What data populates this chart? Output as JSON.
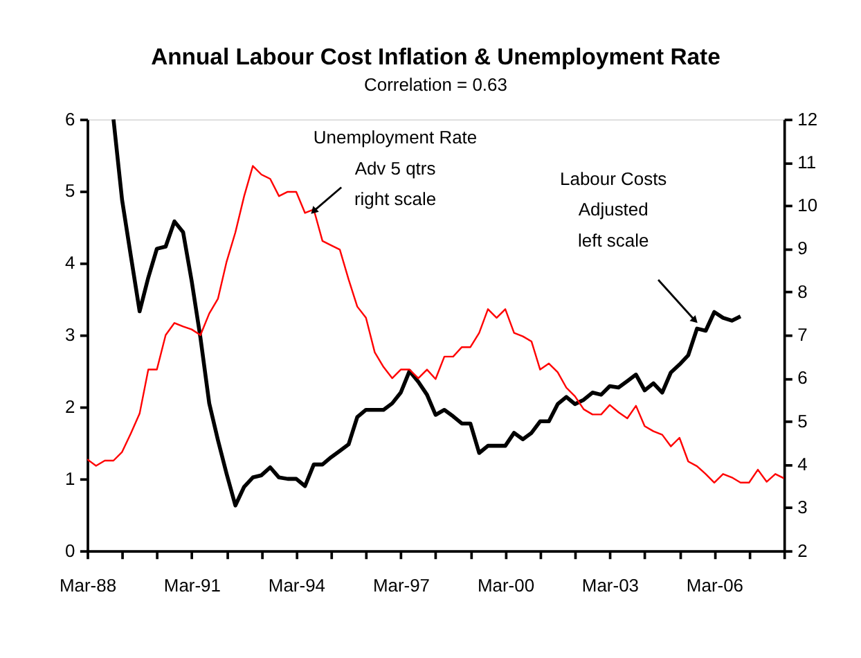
{
  "chart_data": {
    "type": "line",
    "title": "Annual Labour Cost Inflation & Unemployment Rate",
    "subtitle": "Correlation = 0.63",
    "annotations": [
      "Unemployment Rate\nAdv 5 qtrs\nright scale",
      "Labour Costs\nAdjusted\nleft scale"
    ],
    "xlim": [
      "1988-03",
      "2008-03"
    ],
    "xticks": [
      {
        "value": "1988-03",
        "label": "Mar-88"
      },
      {
        "value": "1989-03",
        "label": null
      },
      {
        "value": "1990-03",
        "label": null
      },
      {
        "value": "1991-03",
        "label": "Mar-91"
      },
      {
        "value": "1992-03",
        "label": null
      },
      {
        "value": "1993-03",
        "label": null
      },
      {
        "value": "1994-03",
        "label": "Mar-94"
      },
      {
        "value": "1995-03",
        "label": null
      },
      {
        "value": "1996-03",
        "label": null
      },
      {
        "value": "1997-03",
        "label": "Mar-97"
      },
      {
        "value": "1998-03",
        "label": null
      },
      {
        "value": "1999-03",
        "label": null
      },
      {
        "value": "2000-03",
        "label": "Mar-00"
      },
      {
        "value": "2001-03",
        "label": null
      },
      {
        "value": "2002-03",
        "label": null
      },
      {
        "value": "2003-03",
        "label": "Mar-03"
      },
      {
        "value": "2004-03",
        "label": null
      },
      {
        "value": "2005-03",
        "label": null
      },
      {
        "value": "2006-03",
        "label": "Mar-06"
      },
      {
        "value": "2007-03",
        "label": null
      },
      {
        "value": "2008-03",
        "label": null
      }
    ],
    "ylim": [
      0,
      6
    ],
    "yticks": [
      0,
      1,
      2,
      3,
      4,
      5,
      6
    ],
    "y2lim": [
      2,
      12
    ],
    "y2ticks": [
      2,
      3,
      4,
      5,
      6,
      7,
      8,
      9,
      10,
      11,
      12
    ],
    "grid": false,
    "legend": false,
    "marker": "none",
    "line_style": "solid",
    "series": [
      {
        "color": "#000000",
        "axis": "y",
        "x": [
          "1988-12",
          "1989-03",
          "1989-06",
          "1989-09",
          "1989-12",
          "1990-03",
          "1990-06",
          "1990-09",
          "1990-12",
          "1991-03",
          "1991-06",
          "1991-09",
          "1991-12",
          "1992-03",
          "1992-06",
          "1992-09",
          "1992-12",
          "1993-03",
          "1993-06",
          "1993-09",
          "1993-12",
          "1994-03",
          "1994-06",
          "1994-09",
          "1994-12",
          "1995-03",
          "1995-06",
          "1995-09",
          "1995-12",
          "1996-03",
          "1996-06",
          "1996-09",
          "1996-12",
          "1997-03",
          "1997-06",
          "1997-09",
          "1997-12",
          "1998-03",
          "1998-06",
          "1998-09",
          "1998-12",
          "1999-03",
          "1999-06",
          "1999-09",
          "1999-12",
          "2000-03",
          "2000-06",
          "2000-09",
          "2000-12",
          "2001-03",
          "2001-06",
          "2001-09",
          "2001-12",
          "2002-03",
          "2002-06",
          "2002-09",
          "2002-12",
          "2003-03",
          "2003-06",
          "2003-09",
          "2003-12",
          "2004-03",
          "2004-06",
          "2004-09",
          "2004-12",
          "2005-03",
          "2005-06",
          "2005-09",
          "2005-12",
          "2006-03",
          "2006-06",
          "2006-09",
          "2006-12"
        ],
        "values": [
          6.0,
          4.88,
          4.1,
          3.33,
          3.8,
          4.2,
          4.23,
          4.58,
          4.43,
          3.75,
          2.96,
          2.05,
          1.54,
          1.07,
          0.63,
          0.89,
          1.02,
          1.05,
          1.16,
          1.02,
          1.0,
          1.0,
          0.9,
          1.2,
          1.2,
          1.3,
          1.39,
          1.48,
          1.86,
          1.96,
          1.96,
          1.96,
          2.05,
          2.2,
          2.5,
          2.35,
          2.17,
          1.89,
          1.96,
          1.87,
          1.77,
          1.77,
          1.36,
          1.46,
          1.46,
          1.46,
          1.64,
          1.55,
          1.64,
          1.8,
          1.8,
          2.04,
          2.14,
          2.04,
          2.1,
          2.2,
          2.17,
          2.29,
          2.27,
          2.36,
          2.45,
          2.23,
          2.33,
          2.2,
          2.48,
          2.59,
          2.72,
          3.09,
          3.06,
          3.32,
          3.24,
          3.2,
          3.26
        ]
      },
      {
        "color": "#ff0000",
        "axis": "y2",
        "x": [
          "1988-03",
          "1988-06",
          "1988-09",
          "1988-12",
          "1989-03",
          "1989-06",
          "1989-09",
          "1989-12",
          "1990-03",
          "1990-06",
          "1990-09",
          "1990-12",
          "1991-03",
          "1991-06",
          "1991-09",
          "1991-12",
          "1992-03",
          "1992-06",
          "1992-09",
          "1992-12",
          "1993-03",
          "1993-06",
          "1993-09",
          "1993-12",
          "1994-03",
          "1994-06",
          "1994-09",
          "1994-12",
          "1995-03",
          "1995-06",
          "1995-09",
          "1995-12",
          "1996-03",
          "1996-06",
          "1996-09",
          "1996-12",
          "1997-03",
          "1997-06",
          "1997-09",
          "1997-12",
          "1998-03",
          "1998-06",
          "1998-09",
          "1998-12",
          "1999-03",
          "1999-06",
          "1999-09",
          "1999-12",
          "2000-03",
          "2000-06",
          "2000-09",
          "2000-12",
          "2001-03",
          "2001-06",
          "2001-09",
          "2001-12",
          "2002-03",
          "2002-06",
          "2002-09",
          "2002-12",
          "2003-03",
          "2003-06",
          "2003-09",
          "2003-12",
          "2004-03",
          "2004-06",
          "2004-09",
          "2004-12",
          "2005-03",
          "2005-06",
          "2005-09",
          "2005-12",
          "2006-03",
          "2006-06",
          "2006-09",
          "2006-12",
          "2007-03",
          "2007-06",
          "2007-09",
          "2007-12",
          "2008-03"
        ],
        "values": [
          4.12,
          3.97,
          4.09,
          4.09,
          4.29,
          4.72,
          5.18,
          6.2,
          6.2,
          7.0,
          7.28,
          7.2,
          7.13,
          7.0,
          7.5,
          7.84,
          8.7,
          9.38,
          10.22,
          10.92,
          10.72,
          10.62,
          10.22,
          10.32,
          10.32,
          9.83,
          9.91,
          9.18,
          9.08,
          8.98,
          8.29,
          7.66,
          7.4,
          6.6,
          6.26,
          6.0,
          6.2,
          6.2,
          6.0,
          6.2,
          5.98,
          6.5,
          6.5,
          6.72,
          6.72,
          7.05,
          7.6,
          7.4,
          7.6,
          7.05,
          6.97,
          6.85,
          6.2,
          6.34,
          6.14,
          5.78,
          5.58,
          5.28,
          5.16,
          5.16,
          5.38,
          5.21,
          5.07,
          5.36,
          4.89,
          4.77,
          4.69,
          4.42,
          4.62,
          4.07,
          3.96,
          3.78,
          3.58,
          3.78,
          3.7,
          3.58,
          3.58,
          3.88,
          3.6,
          3.78,
          3.68
        ]
      }
    ]
  }
}
